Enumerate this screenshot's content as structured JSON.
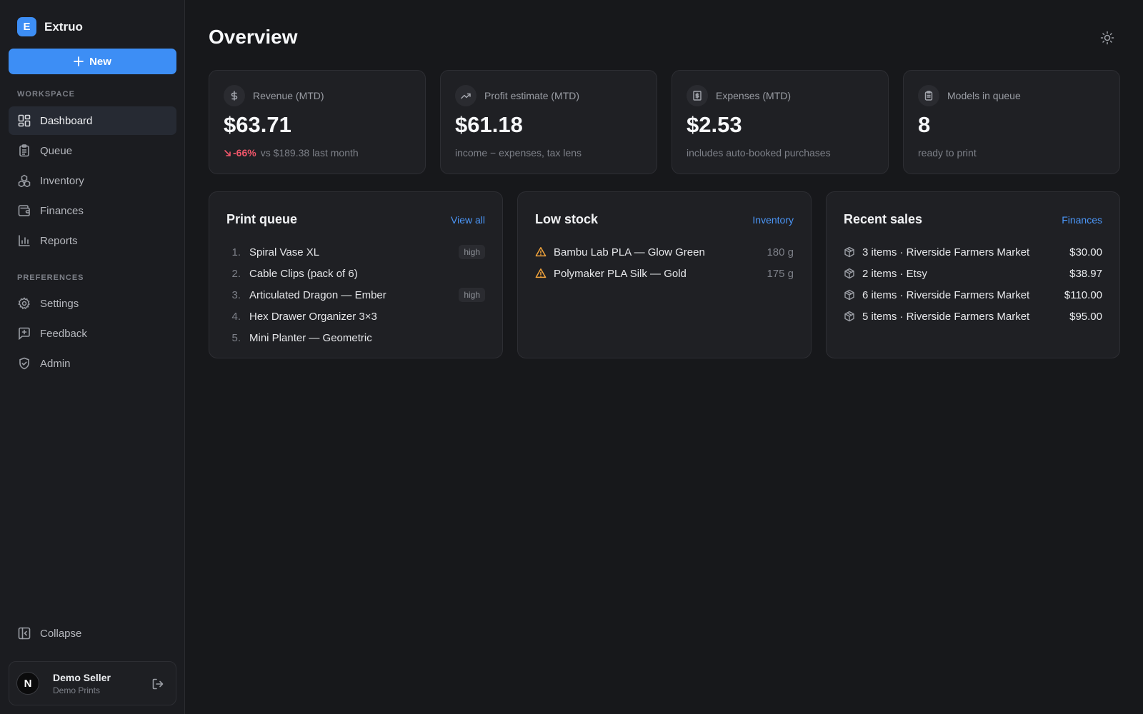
{
  "brand": {
    "initial": "E",
    "name": "Extruo"
  },
  "new_button": {
    "label": "New"
  },
  "sidebar": {
    "workspace_label": "WORKSPACE",
    "workspace_items": [
      {
        "label": "Dashboard",
        "icon": "dashboard-icon",
        "active": true
      },
      {
        "label": "Queue",
        "icon": "clipboard-icon"
      },
      {
        "label": "Inventory",
        "icon": "boxes-icon"
      },
      {
        "label": "Finances",
        "icon": "wallet-icon"
      },
      {
        "label": "Reports",
        "icon": "bar-chart-icon"
      }
    ],
    "preferences_label": "PREFERENCES",
    "preferences_items": [
      {
        "label": "Settings",
        "icon": "gear-icon"
      },
      {
        "label": "Feedback",
        "icon": "feedback-icon"
      },
      {
        "label": "Admin",
        "icon": "shield-icon"
      }
    ],
    "collapse_label": "Collapse"
  },
  "user": {
    "initial": "N",
    "name": "Demo Seller",
    "org": "Demo Prints"
  },
  "page": {
    "title": "Overview"
  },
  "stats": [
    {
      "label": "Revenue (MTD)",
      "icon": "dollar-icon",
      "value": "$63.71",
      "delta": "-66%",
      "sub": "vs $189.38 last month"
    },
    {
      "label": "Profit estimate (MTD)",
      "icon": "trending-up-icon",
      "value": "$61.18",
      "sub": "income − expenses, tax lens"
    },
    {
      "label": "Expenses (MTD)",
      "icon": "receipt-icon",
      "value": "$2.53",
      "sub": "includes auto-booked purchases"
    },
    {
      "label": "Models in queue",
      "icon": "clipboard-icon",
      "value": "8",
      "sub": "ready to print"
    }
  ],
  "print_queue": {
    "title": "Print queue",
    "link": "View all",
    "items": [
      {
        "num": "1.",
        "name": "Spiral Vase XL",
        "badge": "high"
      },
      {
        "num": "2.",
        "name": "Cable Clips (pack of 6)",
        "badge": ""
      },
      {
        "num": "3.",
        "name": "Articulated Dragon — Ember",
        "badge": "high"
      },
      {
        "num": "4.",
        "name": "Hex Drawer Organizer 3×3",
        "badge": ""
      },
      {
        "num": "5.",
        "name": "Mini Planter — Geometric",
        "badge": ""
      }
    ]
  },
  "low_stock": {
    "title": "Low stock",
    "link": "Inventory",
    "items": [
      {
        "name": "Bambu Lab PLA — Glow Green",
        "amount": "180 g"
      },
      {
        "name": "Polymaker PLA Silk — Gold",
        "amount": "175 g"
      }
    ]
  },
  "recent_sales": {
    "title": "Recent sales",
    "link": "Finances",
    "items": [
      {
        "desc": "3 items · Riverside Farmers Market",
        "amount": "$30.00"
      },
      {
        "desc": "2 items · Etsy",
        "amount": "$38.97"
      },
      {
        "desc": "6 items · Riverside Farmers Market",
        "amount": "$110.00"
      },
      {
        "desc": "5 items · Riverside Farmers Market",
        "amount": "$95.00"
      }
    ]
  },
  "colors": {
    "accent": "#3d8ef5",
    "danger": "#f0566a",
    "warning": "#f1a33b",
    "background": "#17181b"
  }
}
